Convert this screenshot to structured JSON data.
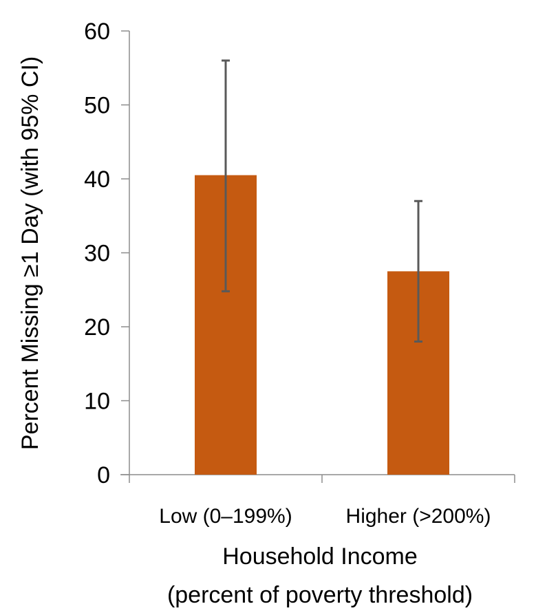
{
  "chart_data": {
    "type": "bar",
    "title": "",
    "categories": [
      "Low (0–199%)",
      "Higher (>200%)"
    ],
    "series": [
      {
        "values": [
          40.5,
          27.5
        ],
        "ci_low": [
          24.8,
          18.0
        ],
        "ci_high": [
          56.0,
          37.0
        ]
      }
    ],
    "ylabel": "Percent Missing ≥1 Day (with 95% CI)",
    "xlabel": [
      "Household Income",
      "(percent of poverty threshold)"
    ],
    "ylim": [
      0,
      60
    ],
    "yticks": [
      0,
      10,
      20,
      30,
      40,
      50,
      60
    ],
    "grid": false,
    "legend": "none",
    "colors": {
      "bar": "#c55a11",
      "error_bar": "#595959",
      "axis": "#8c8c8c"
    }
  }
}
